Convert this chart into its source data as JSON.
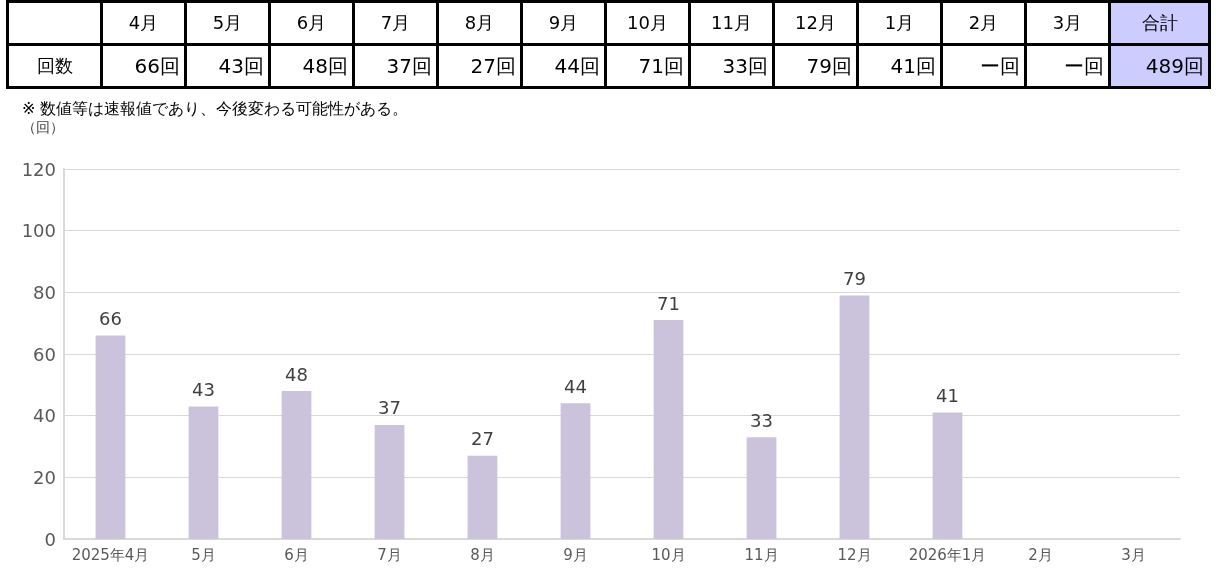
{
  "chart_data": [
    {
      "type": "heatmap",
      "categories": [
        "4月",
        "5月",
        "6月",
        "7月",
        "8月",
        "9月",
        "10月",
        "11月",
        "12月",
        "1月",
        "2月",
        "3月",
        "合計"
      ],
      "y_categories": [
        "回数"
      ],
      "cells": [
        [
          66,
          43,
          48,
          37,
          27,
          44,
          71,
          33,
          79,
          41,
          null,
          null,
          489
        ]
      ],
      "cell_labels": [
        [
          "66回",
          "43回",
          "48回",
          "37回",
          "27回",
          "44回",
          "71回",
          "33回",
          "79回",
          "41回",
          "ー回",
          "ー回",
          "489回"
        ]
      ]
    },
    {
      "type": "bar",
      "annotations": [
        "※  数値等は速報値であり、今後変わる可能性がある。"
      ],
      "ylabel": "（回）",
      "categories": [
        "2025年4月",
        "5月",
        "6月",
        "7月",
        "8月",
        "9月",
        "10月",
        "11月",
        "12月",
        "2026年1月",
        "2月",
        "3月"
      ],
      "values": [
        66,
        43,
        48,
        37,
        27,
        44,
        71,
        33,
        79,
        41,
        null,
        null
      ],
      "color": "#cbc3dc",
      "ylim": [
        0,
        120
      ],
      "yticks": [
        0,
        20,
        40,
        60,
        80,
        100,
        120
      ],
      "grid": "y",
      "data_labels": true
    }
  ]
}
